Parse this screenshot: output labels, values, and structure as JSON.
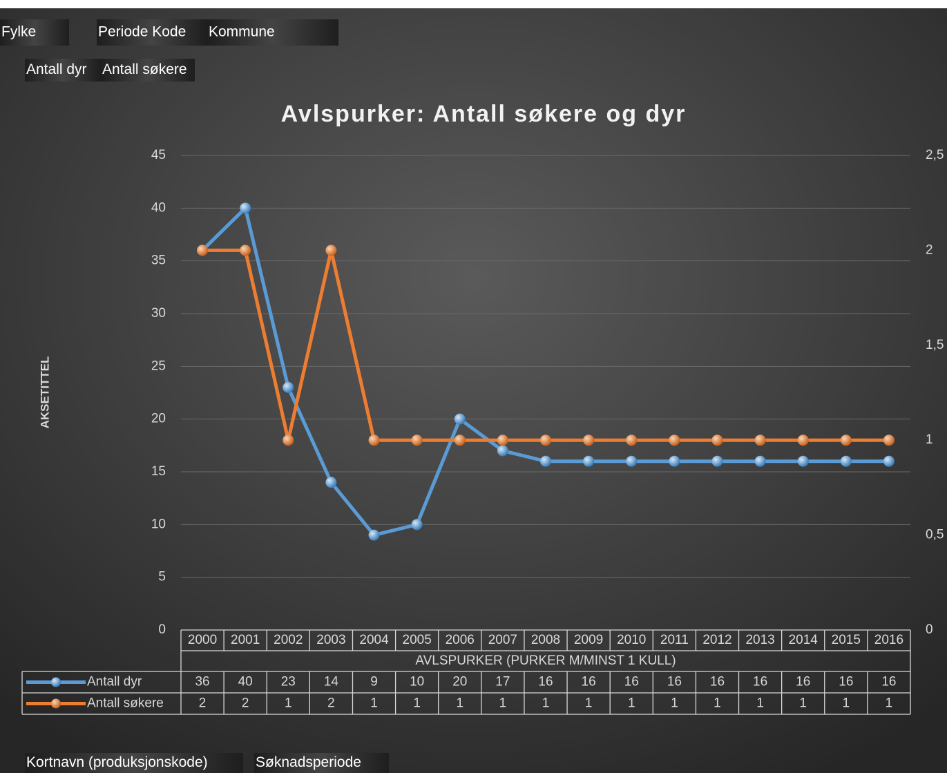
{
  "pivot_fields": {
    "filters": [
      "Fylke",
      "Periode Kode",
      "Kommune"
    ],
    "values": [
      "Antall dyr",
      "Antall søkere"
    ],
    "rows": [
      "Kortnavn (produksjonskode)",
      "Søknadsperiode"
    ]
  },
  "chart_data": {
    "type": "line",
    "title": "Avlspurker: Antall søkere og dyr",
    "y_axis_label": "AKSETITTEL",
    "x_axis_label": "AVLSPURKER (PURKER M/MINST 1 KULL)",
    "categories": [
      "2000",
      "2001",
      "2002",
      "2003",
      "2004",
      "2005",
      "2006",
      "2007",
      "2008",
      "2009",
      "2010",
      "2011",
      "2012",
      "2013",
      "2014",
      "2015",
      "2016"
    ],
    "series": [
      {
        "name": "Antall dyr",
        "color": "#5b9bd5",
        "values": [
          36,
          40,
          23,
          14,
          9,
          10,
          20,
          17,
          16,
          16,
          16,
          16,
          16,
          16,
          16,
          16,
          16
        ]
      },
      {
        "name": "Antall søkere",
        "color": "#ed7d31",
        "axis": "y2",
        "values": [
          2,
          2,
          1,
          2,
          1,
          1,
          1,
          1,
          1,
          1,
          1,
          1,
          1,
          1,
          1,
          1,
          1
        ]
      }
    ],
    "ylim": [
      0,
      45
    ],
    "yticks": [
      0,
      5,
      10,
      15,
      20,
      25,
      30,
      35,
      40,
      45
    ],
    "y2lim": [
      0,
      2.5
    ],
    "y2ticks": [
      0,
      {
        "value": 0.5,
        "label": "0,5"
      },
      1,
      {
        "value": 1.5,
        "label": "1,5"
      },
      2,
      {
        "value": 2.5,
        "label": "2,5"
      }
    ],
    "grid": true
  }
}
